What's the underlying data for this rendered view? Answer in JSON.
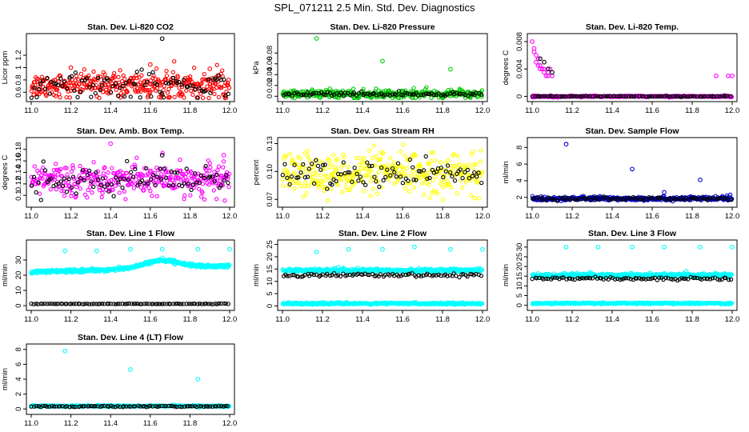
{
  "suptitle": "SPL_071211  2.5 Min. Std. Dev. Diagnostics",
  "colors": {
    "red": "#ff0000",
    "green": "#00cc00",
    "magenta": "#ff00ff",
    "yellow": "#ffff00",
    "blue": "#0000cc",
    "cyan": "#00ffff",
    "black": "#000000"
  },
  "chart_data": [
    {
      "type": "scatter",
      "title": "Stan. Dev. Li-820 CO2",
      "ylabel": "Licor ppm",
      "xlim": [
        11.0,
        12.0
      ],
      "ylim": [
        0.5,
        1.5
      ],
      "xticks": [
        "11.0",
        "11.2",
        "11.4",
        "11.6",
        "11.8",
        "12.0"
      ],
      "yticks": [
        0.6,
        0.8,
        1.0,
        1.2
      ],
      "series": [
        {
          "name": "red",
          "color": "red",
          "mean": 0.72,
          "spread": 0.1,
          "count": 360,
          "x": [
            11.2,
            11.6,
            11.9
          ],
          "y": [
            1.0,
            1.05,
            0.98
          ]
        },
        {
          "name": "black",
          "color": "black",
          "mean": 0.7,
          "spread": 0.1,
          "count": 90,
          "x": [
            11.66
          ],
          "y": [
            1.47
          ]
        }
      ]
    },
    {
      "type": "scatter",
      "title": "Stan. Dev. Li-820 Pressure",
      "ylabel": "kPa",
      "xlim": [
        11.0,
        12.0
      ],
      "ylim": [
        -0.004,
        0.11
      ],
      "xticks": [
        "11.0",
        "11.2",
        "11.4",
        "11.6",
        "11.8",
        "12.0"
      ],
      "yticks": [
        0.0,
        0.02,
        0.04,
        0.06,
        0.08
      ],
      "series": [
        {
          "name": "green",
          "color": "green",
          "mean": 0.004,
          "spread": 0.004,
          "count": 360,
          "x": [
            11.17,
            11.5,
            11.84
          ],
          "y": [
            0.107,
            0.065,
            0.05
          ]
        },
        {
          "name": "black",
          "color": "black",
          "mean": 0.004,
          "spread": 0.002,
          "count": 90,
          "x": [],
          "y": []
        }
      ]
    },
    {
      "type": "scatter",
      "title": "Stan. Dev. Li-820 Temp.",
      "ylabel": "degrees C",
      "xlim": [
        11.0,
        12.0
      ],
      "ylim": [
        -0.0003,
        0.0087
      ],
      "xticks": [
        "11.0",
        "11.2",
        "11.4",
        "11.6",
        "11.8",
        "12.0"
      ],
      "yticks": [
        0.0,
        0.004,
        0.008
      ],
      "series": [
        {
          "name": "magenta",
          "color": "magenta",
          "mean": 0.0,
          "spread": 5e-05,
          "count": 360,
          "x": [
            11.0,
            11.01,
            11.02,
            11.03,
            11.04,
            11.05,
            11.06,
            11.07,
            11.08,
            11.09,
            11.1,
            11.02,
            11.04,
            11.06,
            11.08,
            11.01,
            11.03,
            11.92,
            11.98,
            12.0
          ],
          "y": [
            0.008,
            0.007,
            0.006,
            0.0055,
            0.0045,
            0.004,
            0.0035,
            0.003,
            0.003,
            0.004,
            0.003,
            0.005,
            0.004,
            0.004,
            0.0035,
            0.0065,
            0.0045,
            0.003,
            0.003,
            0.003
          ]
        },
        {
          "name": "black",
          "color": "black",
          "mean": 0.0,
          "spread": 3e-05,
          "count": 90,
          "x": [
            11.04,
            11.06,
            11.08,
            11.1
          ],
          "y": [
            0.0055,
            0.005,
            0.004,
            0.0035
          ]
        }
      ]
    },
    {
      "type": "scatter",
      "title": "Stan. Dev. Amb. Box Temp.",
      "ylabel": "degrees C",
      "xlim": [
        11.0,
        12.0
      ],
      "ylim": [
        0.085,
        0.195
      ],
      "xticks": [
        "11.0",
        "11.2",
        "11.4",
        "11.6",
        "11.8",
        "12.0"
      ],
      "yticks": [
        0.1,
        0.12,
        0.14,
        0.16,
        0.18
      ],
      "series": [
        {
          "name": "magenta",
          "color": "magenta",
          "mean": 0.127,
          "spread": 0.014,
          "count": 360,
          "x": [
            11.4,
            11.97
          ],
          "y": [
            0.19,
            0.17
          ]
        },
        {
          "name": "black",
          "color": "black",
          "mean": 0.124,
          "spread": 0.012,
          "count": 90,
          "x": [
            11.66
          ],
          "y": [
            0.17
          ]
        }
      ]
    },
    {
      "type": "scatter",
      "title": "Stan. Dev. Gas Stream RH",
      "ylabel": "percent",
      "xlim": [
        11.0,
        12.0
      ],
      "ylim": [
        0.065,
        0.133
      ],
      "xticks": [
        "11.0",
        "11.2",
        "11.4",
        "11.6",
        "11.8",
        "12.0"
      ],
      "yticks": [
        0.07,
        0.1,
        0.13
      ],
      "ytick_labels": [
        "0.07",
        "0.10",
        "0.13"
      ],
      "series": [
        {
          "name": "yellow",
          "color": "yellow",
          "mean": 0.098,
          "spread": 0.011,
          "count": 360,
          "x": [],
          "y": []
        },
        {
          "name": "black",
          "color": "black",
          "mean": 0.097,
          "spread": 0.008,
          "count": 90,
          "x": [],
          "y": []
        }
      ]
    },
    {
      "type": "scatter",
      "title": "Stan. Dev. Sample Flow",
      "ylabel": "ml/min",
      "xlim": [
        11.0,
        12.0
      ],
      "ylim": [
        1.2,
        8.8
      ],
      "xticks": [
        "11.0",
        "11.2",
        "11.4",
        "11.6",
        "11.8",
        "12.0"
      ],
      "yticks": [
        2,
        4,
        6,
        8
      ],
      "series": [
        {
          "name": "blue",
          "color": "blue",
          "mean": 1.85,
          "spread": 0.12,
          "count": 360,
          "x": [
            11.17,
            11.5,
            11.84,
            11.66,
            11.99
          ],
          "y": [
            8.4,
            5.4,
            4.1,
            2.6,
            2.3
          ]
        },
        {
          "name": "black",
          "color": "black",
          "mean": 1.85,
          "spread": 0.1,
          "count": 90,
          "x": [],
          "y": []
        }
      ]
    },
    {
      "type": "scatter",
      "title": "Stan. Dev. Line 1 Flow",
      "ylabel": "ml/min",
      "xlim": [
        11.0,
        12.0
      ],
      "ylim": [
        -1,
        41
      ],
      "xticks": [
        "11.0",
        "11.2",
        "11.4",
        "11.6",
        "11.8",
        "12.0"
      ],
      "yticks": [
        0,
        10,
        20,
        30
      ],
      "series": [
        {
          "name": "cyan-band",
          "color": "cyan",
          "profile": "line1",
          "spread": 0.5,
          "count": 500,
          "x": [
            11.17,
            11.33,
            11.5,
            11.66,
            11.84,
            12.0
          ],
          "y": [
            36,
            36,
            37,
            37,
            37,
            37
          ]
        },
        {
          "name": "black",
          "color": "black",
          "mean": 1.2,
          "spread": 0.1,
          "count": 90,
          "x": [],
          "y": []
        }
      ]
    },
    {
      "type": "scatter",
      "title": "Stan. Dev. Line 2 Flow",
      "ylabel": "ml/min",
      "xlim": [
        11.0,
        12.0
      ],
      "ylim": [
        -0.5,
        25.5
      ],
      "xticks": [
        "11.0",
        "11.2",
        "11.4",
        "11.6",
        "11.8",
        "12.0"
      ],
      "yticks": [
        0,
        5,
        10,
        15,
        20,
        25
      ],
      "series": [
        {
          "name": "cyan-top",
          "color": "cyan",
          "mean": 14.5,
          "spread": 0.4,
          "count": 360,
          "x": [
            11.17,
            11.33,
            11.5,
            11.66,
            11.84,
            12.0
          ],
          "y": [
            22,
            23,
            23,
            24,
            23,
            23
          ]
        },
        {
          "name": "cyan-bottom",
          "color": "cyan",
          "mean": 1.0,
          "spread": 0.2,
          "count": 360,
          "x": [],
          "y": []
        },
        {
          "name": "black",
          "color": "black",
          "mean": 12.5,
          "spread": 0.3,
          "count": 90,
          "x": [],
          "y": []
        }
      ]
    },
    {
      "type": "scatter",
      "title": "Stan. Dev. Line 3 Flow",
      "ylabel": "ml/min",
      "xlim": [
        11.0,
        12.0
      ],
      "ylim": [
        -1,
        32
      ],
      "xticks": [
        "11.0",
        "11.2",
        "11.4",
        "11.6",
        "11.8",
        "12.0"
      ],
      "yticks": [
        0,
        5,
        10,
        15,
        20,
        25,
        30
      ],
      "series": [
        {
          "name": "cyan-top",
          "color": "cyan",
          "mean": 15.5,
          "spread": 0.5,
          "count": 360,
          "x": [
            11.17,
            11.33,
            11.5,
            11.66,
            11.84,
            12.0
          ],
          "y": [
            30,
            30,
            30,
            30,
            30,
            30
          ]
        },
        {
          "name": "cyan-bottom",
          "color": "cyan",
          "mean": 1.0,
          "spread": 0.2,
          "count": 360,
          "x": [],
          "y": []
        },
        {
          "name": "black",
          "color": "black",
          "mean": 13.8,
          "spread": 0.4,
          "count": 90,
          "x": [],
          "y": []
        }
      ]
    },
    {
      "type": "scatter",
      "title": "Stan. Dev. Line 4 (LT) Flow",
      "ylabel": "ml/min",
      "xlim": [
        11.0,
        12.0
      ],
      "ylim": [
        -0.3,
        8.3
      ],
      "xticks": [
        "11.0",
        "11.2",
        "11.4",
        "11.6",
        "11.8",
        "12.0"
      ],
      "yticks": [
        0,
        2,
        4,
        6,
        8
      ],
      "series": [
        {
          "name": "cyan",
          "color": "cyan",
          "mean": 0.4,
          "spread": 0.05,
          "count": 360,
          "x": [
            11.17,
            11.5,
            11.84
          ],
          "y": [
            7.8,
            5.3,
            4.0
          ]
        },
        {
          "name": "black",
          "color": "black",
          "mean": 0.35,
          "spread": 0.04,
          "count": 90,
          "x": [],
          "y": []
        }
      ]
    }
  ]
}
